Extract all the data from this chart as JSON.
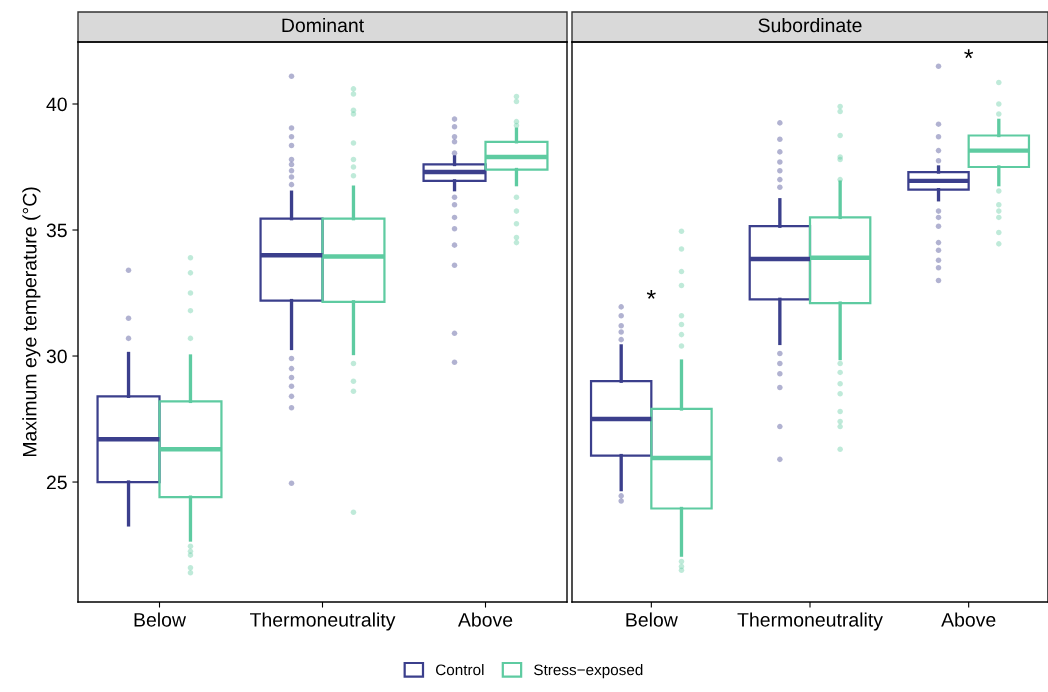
{
  "chart_data": [
    {
      "type": "box",
      "title": "Dominant",
      "ylabel": "Maximum eye temperature (°C)",
      "categories": [
        "Below",
        "Thermoneutrality",
        "Above"
      ],
      "ylim": [
        20.24,
        42.46
      ],
      "yticks": [
        25,
        30,
        35,
        40
      ],
      "series": [
        {
          "color": "#3b3f8c",
          "boxes": [
            {
              "low": 23.3,
              "q1": 25.0,
              "median": 26.7,
              "q3": 28.4,
              "high": 30.1,
              "outliers": [
                33.4,
                31.5,
                30.7
              ]
            },
            {
              "low": 30.3,
              "q1": 32.2,
              "median": 34.0,
              "q3": 35.45,
              "high": 36.5,
              "outliers": [
                41.1,
                39.05,
                38.7,
                38.35,
                37.8,
                37.6,
                37.35,
                37.1,
                36.8,
                29.9,
                29.5,
                29.15,
                28.8,
                28.4,
                27.95,
                24.95
              ]
            },
            {
              "low": 36.6,
              "q1": 36.95,
              "median": 37.3,
              "q3": 37.6,
              "high": 37.9,
              "outliers": [
                39.4,
                39.1,
                38.7,
                38.5,
                38.05,
                36.3,
                36.0,
                35.5,
                35.05,
                34.4,
                33.6,
                30.9,
                29.75
              ]
            }
          ]
        },
        {
          "color": "#5ecba1",
          "boxes": [
            {
              "low": 22.7,
              "q1": 24.4,
              "median": 26.3,
              "q3": 28.2,
              "high": 30.0,
              "outliers": [
                33.9,
                33.3,
                32.5,
                31.8,
                30.7,
                22.45,
                22.25,
                22.1,
                21.6,
                21.4
              ]
            },
            {
              "low": 30.1,
              "q1": 32.15,
              "median": 33.95,
              "q3": 35.45,
              "high": 36.7,
              "outliers": [
                40.6,
                40.4,
                39.75,
                39.6,
                38.45,
                37.8,
                37.5,
                37.15,
                29.7,
                29.0,
                28.6,
                23.8
              ]
            },
            {
              "low": 36.8,
              "q1": 37.4,
              "median": 37.9,
              "q3": 38.5,
              "high": 39.0,
              "outliers": [
                40.3,
                40.1,
                39.3,
                39.15,
                36.3,
                35.75,
                35.25,
                34.7,
                34.5
              ]
            }
          ]
        }
      ]
    },
    {
      "type": "box",
      "title": "Subordinate",
      "categories": [
        "Below",
        "Thermoneutrality",
        "Above"
      ],
      "ylim": [
        20.24,
        42.46
      ],
      "tick_labels": "x",
      "legend": "bottom",
      "annotations": [
        "*",
        "*"
      ],
      "series": [
        {
          "name": "Control",
          "color": "#3b3f8c",
          "boxes": [
            {
              "low": 24.7,
              "q1": 26.05,
              "median": 27.5,
              "q3": 29.0,
              "high": 30.4,
              "outliers": [
                31.95,
                31.6,
                31.2,
                30.95,
                30.65,
                24.45,
                24.25
              ]
            },
            {
              "low": 30.5,
              "q1": 32.25,
              "median": 33.85,
              "q3": 35.15,
              "high": 36.2,
              "outliers": [
                39.25,
                38.6,
                38.1,
                37.7,
                37.35,
                37.0,
                36.7,
                30.1,
                29.7,
                29.3,
                28.75,
                27.2,
                25.9
              ]
            },
            {
              "low": 36.2,
              "q1": 36.6,
              "median": 36.95,
              "q3": 37.3,
              "high": 37.5,
              "outliers": [
                41.5,
                39.2,
                38.7,
                38.15,
                37.75,
                35.75,
                35.5,
                35.15,
                34.5,
                34.2,
                33.8,
                33.5,
                33.0
              ]
            }
          ]
        },
        {
          "name": "Stress−exposed",
          "color": "#5ecba1",
          "boxes": [
            {
              "low": 22.1,
              "q1": 23.95,
              "median": 25.95,
              "q3": 27.9,
              "high": 29.8,
              "outliers": [
                34.95,
                34.25,
                33.35,
                32.8,
                31.6,
                31.25,
                30.85,
                30.4,
                21.85,
                21.65,
                21.5
              ]
            },
            {
              "low": 29.9,
              "q1": 32.1,
              "median": 33.9,
              "q3": 35.5,
              "high": 36.9,
              "outliers": [
                39.9,
                39.7,
                38.75,
                37.9,
                37.8,
                37.0,
                29.7,
                29.35,
                28.9,
                28.5,
                27.8,
                27.4,
                27.2,
                26.3
              ]
            },
            {
              "low": 36.8,
              "q1": 37.5,
              "median": 38.15,
              "q3": 38.75,
              "high": 39.35,
              "outliers": [
                40.85,
                40.0,
                39.6,
                36.55,
                36.0,
                35.75,
                35.5,
                34.9,
                34.45
              ]
            }
          ]
        }
      ]
    }
  ]
}
